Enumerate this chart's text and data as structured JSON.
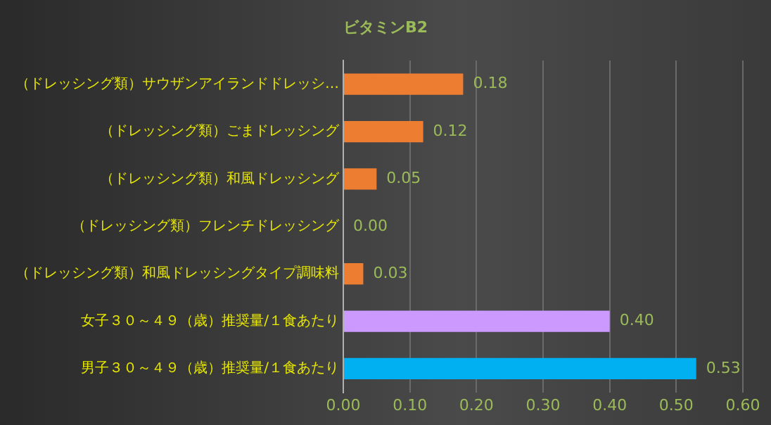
{
  "chart_data": {
    "type": "bar",
    "orientation": "horizontal",
    "title": "ビタミンB2",
    "categories": [
      "（ドレッシング類）サウザンアイランドドレッシ…",
      "（ドレッシング類）ごまドレッシング",
      "（ドレッシング類）和風ドレッシング",
      "（ドレッシング類）フレンチドレッシング",
      "（ドレッシング類）和風ドレッシングタイプ調味料",
      "女子３０～４９（歳）推奨量/１食あたり",
      "男子３０～４９（歳）推奨量/１食あたり"
    ],
    "values": [
      0.18,
      0.12,
      0.05,
      0.0,
      0.03,
      0.4,
      0.53
    ],
    "colors": [
      "#ed7d31",
      "#ed7d31",
      "#ed7d31",
      "#ed7d31",
      "#ed7d31",
      "#cc99ff",
      "#00b0f0"
    ],
    "value_labels": [
      "0.18",
      "0.12",
      "0.05",
      "0.00",
      "0.03",
      "0.40",
      "0.53"
    ],
    "xlim": [
      0,
      0.6
    ],
    "xticks": [
      {
        "value": 0,
        "label": "0.00"
      },
      {
        "value": 0.1,
        "label": "0.10"
      },
      {
        "value": 0.2,
        "label": "0.20"
      },
      {
        "value": 0.3,
        "label": "0.30"
      },
      {
        "value": 0.4,
        "label": "0.40"
      },
      {
        "value": 0.5,
        "label": "0.50"
      },
      {
        "value": 0.6,
        "label": "0.60"
      }
    ],
    "grid": "x",
    "legend": false
  }
}
